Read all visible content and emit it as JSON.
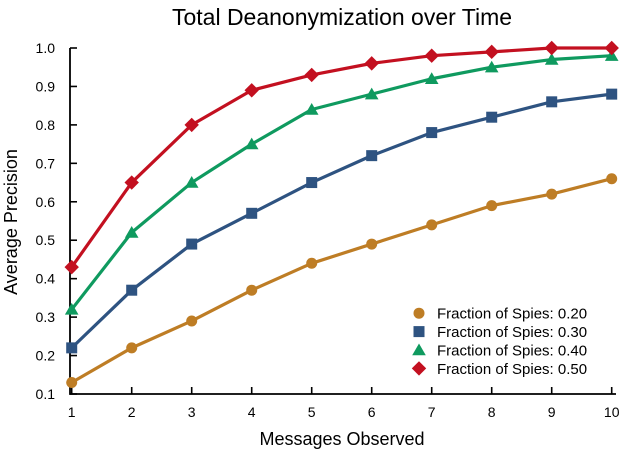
{
  "title": "Total Deanonymization over Time",
  "chart_data": {
    "type": "line",
    "title": "Total Deanonymization over Time",
    "xlabel": "Messages Observed",
    "ylabel": "Average Precision",
    "x": [
      1,
      2,
      3,
      4,
      5,
      6,
      7,
      8,
      9,
      10
    ],
    "x_tick_labels": [
      "1",
      "2",
      "3",
      "4",
      "5",
      "6",
      "7",
      "8",
      "9",
      "10"
    ],
    "y_ticks": [
      0.1,
      0.2,
      0.3,
      0.4,
      0.5,
      0.6,
      0.7,
      0.8,
      0.9,
      1.0
    ],
    "y_tick_labels": [
      "0.1",
      "0.2",
      "0.3",
      "0.4",
      "0.5",
      "0.6",
      "0.7",
      "0.8",
      "0.9",
      "1.0"
    ],
    "xlim": [
      1,
      10
    ],
    "ylim": [
      0.1,
      1.0
    ],
    "grid": false,
    "legend_position": "lower right",
    "axis_color": "#000000",
    "series": [
      {
        "name": "Fraction of Spies: 0.20",
        "marker": "circle",
        "color": "#BE7D25",
        "values": [
          0.13,
          0.22,
          0.29,
          0.37,
          0.44,
          0.49,
          0.54,
          0.59,
          0.62,
          0.66
        ]
      },
      {
        "name": "Fraction of Spies: 0.30",
        "marker": "square",
        "color": "#2E5381",
        "values": [
          0.22,
          0.37,
          0.49,
          0.57,
          0.65,
          0.72,
          0.78,
          0.82,
          0.86,
          0.88
        ]
      },
      {
        "name": "Fraction of Spies: 0.40",
        "marker": "triangle",
        "color": "#0F9A5F",
        "values": [
          0.32,
          0.52,
          0.65,
          0.75,
          0.84,
          0.88,
          0.92,
          0.95,
          0.97,
          0.98
        ]
      },
      {
        "name": "Fraction of Spies: 0.50",
        "marker": "diamond",
        "color": "#C31020",
        "values": [
          0.43,
          0.65,
          0.8,
          0.89,
          0.93,
          0.96,
          0.98,
          0.99,
          1.0,
          1.0
        ]
      }
    ]
  }
}
